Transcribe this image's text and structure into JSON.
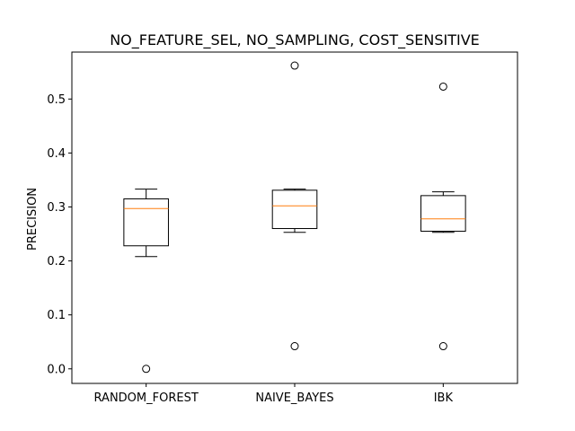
{
  "chart_data": {
    "type": "box",
    "title": "NO_FEATURE_SEL, NO_SAMPLING, COST_SENSITIVE",
    "xlabel": "",
    "ylabel": "PRECISION",
    "ylim": [
      -0.027,
      0.587
    ],
    "yticks": [
      0.0,
      0.1,
      0.2,
      0.3,
      0.4,
      0.5
    ],
    "ytick_labels": [
      "0.0",
      "0.1",
      "0.2",
      "0.3",
      "0.4",
      "0.5"
    ],
    "grid": false,
    "categories": [
      "RANDOM_FOREST",
      "NAIVE_BAYES",
      "IBK"
    ],
    "boxes": [
      {
        "whislo": 0.208,
        "q1": 0.228,
        "med": 0.297,
        "q3": 0.315,
        "whishi": 0.333,
        "fliers": [
          0.0
        ]
      },
      {
        "whislo": 0.253,
        "q1": 0.26,
        "med": 0.302,
        "q3": 0.331,
        "whishi": 0.333,
        "fliers": [
          0.562,
          0.042
        ]
      },
      {
        "whislo": 0.253,
        "q1": 0.255,
        "med": 0.278,
        "q3": 0.321,
        "whishi": 0.328,
        "fliers": [
          0.523,
          0.042
        ]
      }
    ],
    "colors": {
      "box": "#000000",
      "median": "#ff7f0e",
      "flier_edge": "#000000"
    }
  }
}
